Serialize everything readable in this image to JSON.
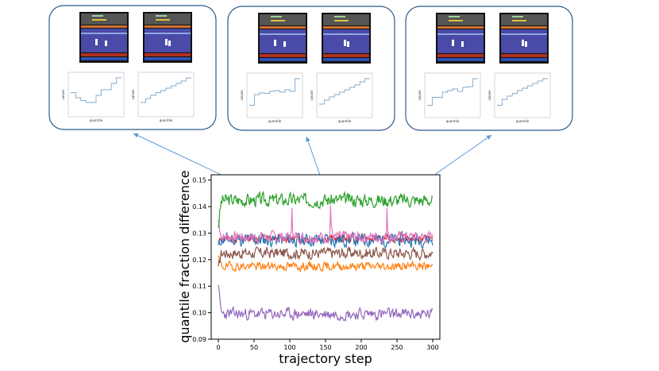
{
  "chart_data": {
    "type": "line",
    "xlabel": "trajectory step",
    "ylabel": "quantile fraction difference",
    "xlim": [
      -10,
      310
    ],
    "ylim": [
      0.09,
      0.152
    ],
    "xticks": [
      "0",
      "50",
      "100",
      "150",
      "200",
      "250",
      "300"
    ],
    "yticks": [
      "0.09",
      "0.10",
      "0.11",
      "0.12",
      "0.13",
      "0.14",
      "0.15"
    ],
    "series": [
      {
        "name": "green",
        "color": "#2ca02c",
        "base": 0.1425,
        "amp": 0.0035,
        "seed": 3,
        "start": 0.132
      },
      {
        "name": "pink",
        "color": "#e377c2",
        "base": 0.1285,
        "amp": 0.003,
        "seed": 7,
        "start": 0.135,
        "spikes": [
          [
            103,
            0.1395
          ],
          [
            157,
            0.1405
          ],
          [
            236,
            0.1395
          ]
        ]
      },
      {
        "name": "blue",
        "color": "#1f77b4",
        "base": 0.1275,
        "amp": 0.0035,
        "seed": 11,
        "start": 0.1255
      },
      {
        "name": "red",
        "color": "#d62728",
        "base": 0.128,
        "amp": 0.002,
        "seed": 13,
        "start": 0.1265
      },
      {
        "name": "brown",
        "color": "#8c564b",
        "base": 0.1225,
        "amp": 0.003,
        "seed": 17,
        "start": 0.1175
      },
      {
        "name": "orange",
        "color": "#ff7f0e",
        "base": 0.1175,
        "amp": 0.0022,
        "seed": 19,
        "start": 0.1215
      },
      {
        "name": "purple",
        "color": "#9467bd",
        "base": 0.0995,
        "amp": 0.003,
        "seed": 23,
        "start": 0.1105
      }
    ],
    "insets": [
      {
        "name": "inset-left",
        "plots": [
          {
            "ylabel": "values",
            "xlabel": "quantile",
            "steps": [
              0.55,
              0.42,
              0.35,
              0.3,
              0.3,
              0.48,
              0.62,
              0.62,
              0.78,
              0.92
            ]
          },
          {
            "ylabel": "values",
            "xlabel": "quantile",
            "steps": [
              0.3,
              0.4,
              0.48,
              0.55,
              0.6,
              0.66,
              0.72,
              0.78,
              0.84,
              0.92
            ]
          }
        ]
      },
      {
        "name": "inset-middle",
        "plots": [
          {
            "ylabel": "values",
            "xlabel": "quantile",
            "steps": [
              0.25,
              0.52,
              0.56,
              0.55,
              0.6,
              0.62,
              0.58,
              0.64,
              0.6,
              0.92
            ]
          },
          {
            "ylabel": "values",
            "xlabel": "quantile",
            "steps": [
              0.28,
              0.38,
              0.46,
              0.52,
              0.58,
              0.64,
              0.7,
              0.76,
              0.84,
              0.92
            ]
          }
        ]
      },
      {
        "name": "inset-right",
        "plots": [
          {
            "ylabel": "values",
            "xlabel": "quantile",
            "steps": [
              0.25,
              0.45,
              0.45,
              0.58,
              0.62,
              0.66,
              0.6,
              0.7,
              0.72,
              0.92
            ]
          },
          {
            "ylabel": "values",
            "xlabel": "quantile",
            "steps": [
              0.25,
              0.4,
              0.48,
              0.55,
              0.62,
              0.68,
              0.74,
              0.8,
              0.86,
              0.92
            ]
          }
        ]
      }
    ]
  },
  "colors": {
    "inset_border": "#2e5a8a",
    "arrow": "#5b9bd5",
    "inset_line": "#7fa8cc",
    "game_bg": "#4a4aa8",
    "game_top": "#555555",
    "game_stripe": "#d07030"
  }
}
